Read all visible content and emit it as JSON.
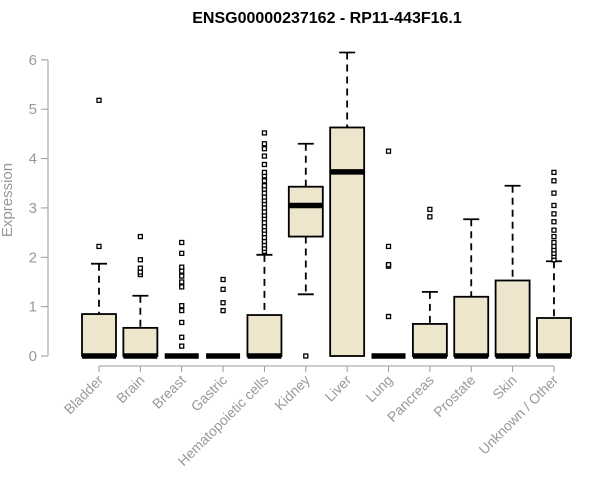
{
  "chart_data": {
    "type": "boxplot",
    "title": "ENSG00000237162 - RP11-443F16.1",
    "xlabel": "",
    "ylabel": "Expression",
    "ylim": [
      0,
      6.2
    ],
    "yticks": [
      0,
      1,
      2,
      3,
      4,
      5,
      6
    ],
    "grid": false,
    "box_fill": "#ede5cc",
    "axis_color": "#999999",
    "categories": [
      "Bladder",
      "Brain",
      "Breast",
      "Gastric",
      "Hematopoietic cells",
      "Kidney",
      "Liver",
      "Lung",
      "Pancreas",
      "Prostate",
      "Skin",
      "Unknown / Other"
    ],
    "boxes": [
      {
        "min": 0,
        "q1": 0,
        "median": 0,
        "q3": 0.85,
        "max": 1.87,
        "outliers": [
          2.22,
          5.18
        ]
      },
      {
        "min": 0,
        "q1": 0,
        "median": 0,
        "q3": 0.57,
        "max": 1.22,
        "outliers": [
          1.65,
          1.7,
          1.78,
          1.95,
          2.42
        ]
      },
      {
        "min": 0,
        "q1": 0,
        "median": 0,
        "q3": 0,
        "max": 0,
        "outliers": [
          0.2,
          0.38,
          0.68,
          0.92,
          1.02,
          1.4,
          1.5,
          1.62,
          1.72,
          1.8,
          2.08,
          2.3
        ]
      },
      {
        "min": 0,
        "q1": 0,
        "median": 0,
        "q3": 0,
        "max": 0,
        "outliers": [
          0.92,
          1.08,
          1.35,
          1.55
        ]
      },
      {
        "min": 0,
        "q1": 0,
        "median": 0,
        "q3": 0.83,
        "max": 2.05,
        "outliers": [
          2.12,
          2.18,
          2.25,
          2.32,
          2.4,
          2.48,
          2.55,
          2.62,
          2.7,
          2.78,
          2.85,
          2.92,
          3.0,
          3.08,
          3.15,
          3.22,
          3.3,
          3.38,
          3.45,
          3.55,
          3.65,
          3.72,
          3.88,
          4.05,
          4.2,
          4.3,
          4.52
        ]
      },
      {
        "min": 1.25,
        "q1": 2.42,
        "median": 3.05,
        "q3": 3.43,
        "max": 4.3,
        "outliers": [
          0.0
        ]
      },
      {
        "min": 0,
        "q1": 0,
        "median": 3.73,
        "q3": 4.63,
        "max": 6.15,
        "outliers": []
      },
      {
        "min": 0,
        "q1": 0,
        "median": 0,
        "q3": 0,
        "max": 0,
        "outliers": [
          0.8,
          1.82,
          1.85,
          2.22,
          4.15
        ]
      },
      {
        "min": 0,
        "q1": 0,
        "median": 0,
        "q3": 0.65,
        "max": 1.3,
        "outliers": [
          2.82,
          2.97
        ]
      },
      {
        "min": 0,
        "q1": 0,
        "median": 0,
        "q3": 1.2,
        "max": 2.77,
        "outliers": []
      },
      {
        "min": 0,
        "q1": 0,
        "median": 0,
        "q3": 1.53,
        "max": 3.45,
        "outliers": []
      },
      {
        "min": 0,
        "q1": 0,
        "median": 0,
        "q3": 0.77,
        "max": 1.92,
        "outliers": [
          1.95,
          2.02,
          2.08,
          2.15,
          2.22,
          2.3,
          2.42,
          2.55,
          2.72,
          2.88,
          3.05,
          3.3,
          3.55,
          3.72
        ]
      }
    ]
  }
}
